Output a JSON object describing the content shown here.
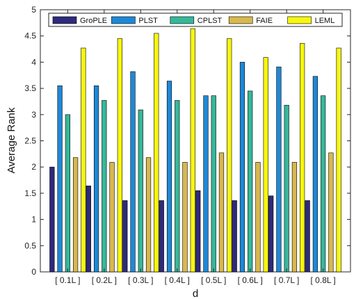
{
  "chart_data": {
    "type": "bar",
    "xlabel": "d",
    "ylabel": "Average Rank",
    "ylim": [
      0,
      5
    ],
    "yticks": [
      "0",
      "0.5",
      "1",
      "1.5",
      "2",
      "2.5",
      "3",
      "3.5",
      "4",
      "4.5",
      "5"
    ],
    "categories": [
      "[ 0.1L ]",
      "[ 0.2L ]",
      "[ 0.3L ]",
      "[ 0.4L ]",
      "[ 0.5L ]",
      "[ 0.6L ]",
      "[ 0.7L ]",
      "[ 0.8L ]"
    ],
    "legend_position": "top",
    "grid": false,
    "series": [
      {
        "name": "GroPLE",
        "color": "#2e2a7c",
        "values": [
          2.0,
          1.64,
          1.36,
          1.36,
          1.55,
          1.36,
          1.45,
          1.36
        ]
      },
      {
        "name": "PLST",
        "color": "#1e88d6",
        "values": [
          3.55,
          3.55,
          3.82,
          3.64,
          3.36,
          4.0,
          3.91,
          3.73
        ]
      },
      {
        "name": "CPLST",
        "color": "#36b79a",
        "values": [
          3.0,
          3.27,
          3.09,
          3.27,
          3.36,
          3.45,
          3.18,
          3.36
        ]
      },
      {
        "name": "FAIE",
        "color": "#d8b84e",
        "values": [
          2.18,
          2.09,
          2.18,
          2.09,
          2.27,
          2.09,
          2.09,
          2.27
        ]
      },
      {
        "name": "LEML",
        "color": "#f7f70e",
        "values": [
          4.27,
          4.45,
          4.55,
          4.64,
          4.45,
          4.09,
          4.36,
          4.27
        ]
      }
    ]
  }
}
